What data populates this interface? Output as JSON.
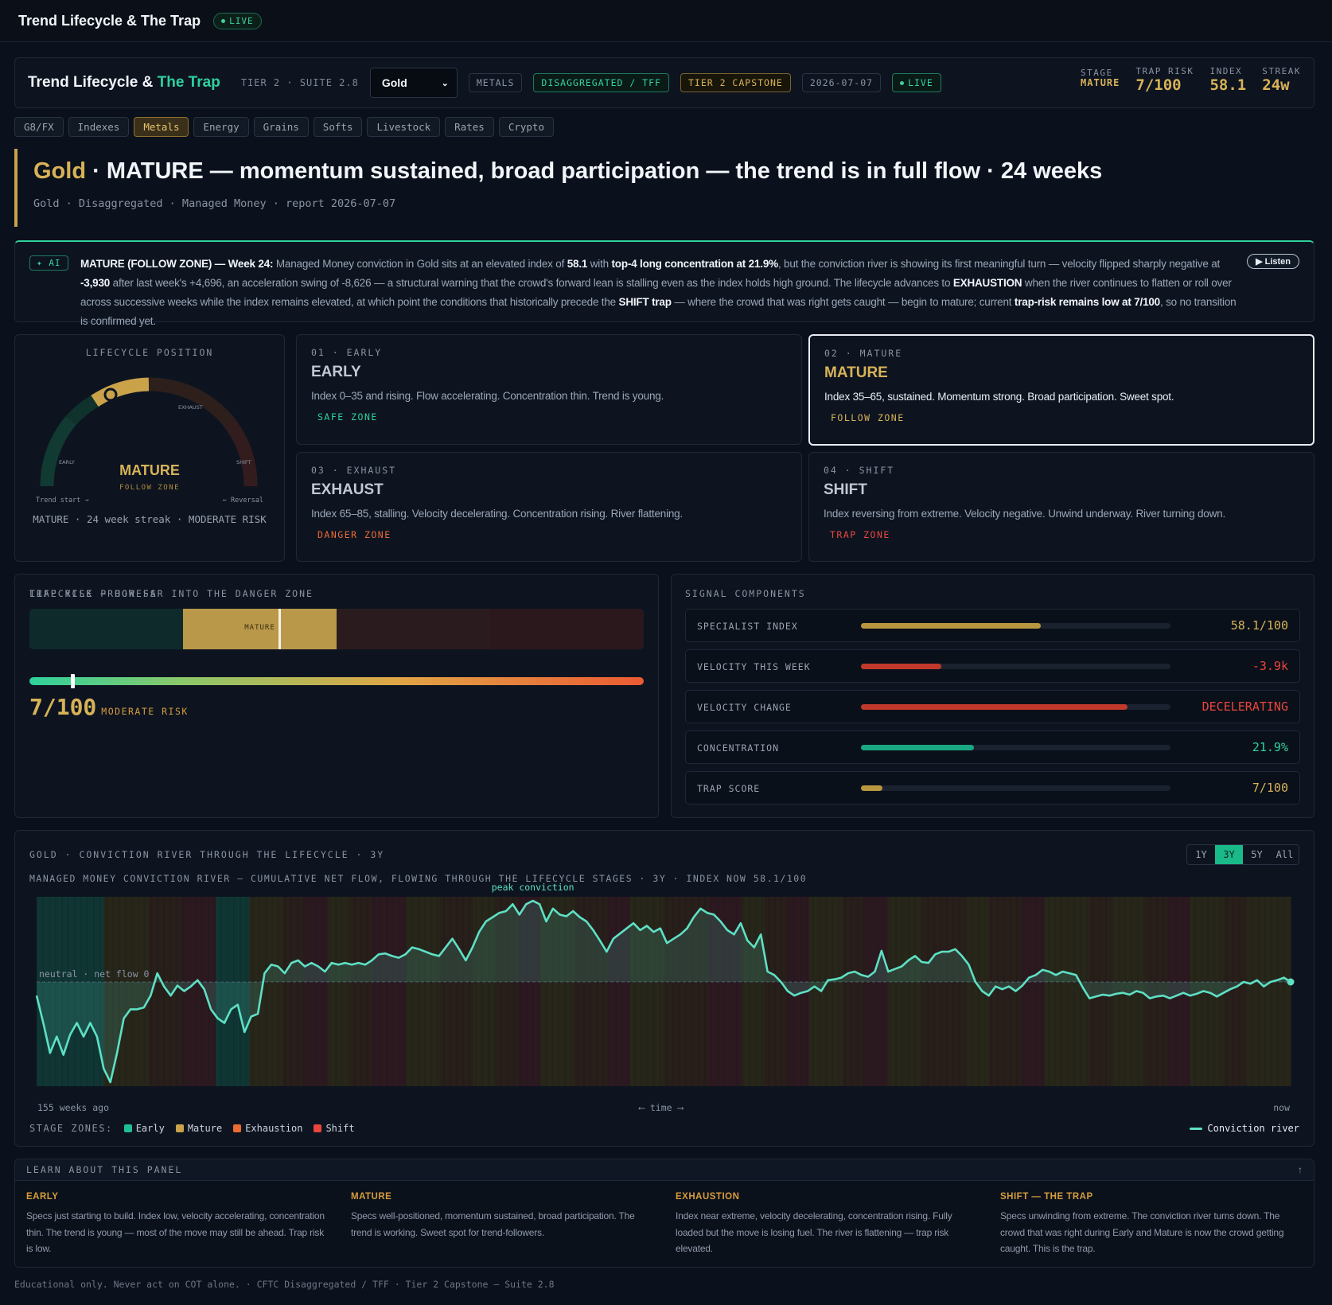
{
  "app": {
    "title": "Trend Lifecycle & The Trap",
    "live": "LIVE"
  },
  "header": {
    "brand_a": "Trend Lifecycle & ",
    "brand_b": "The Trap",
    "meta": "TIER 2 · SUITE 2.8",
    "asset_select": "Gold",
    "chips": [
      "METALS",
      "DISAGGREGATED / TFF",
      "TIER 2 CAPSTONE",
      "2026-07-07",
      "LIVE"
    ],
    "stats": [
      {
        "k": "STAGE",
        "v": "MATURE"
      },
      {
        "k": "TRAP RISK",
        "v": "7/100"
      },
      {
        "k": "INDEX",
        "v": "58.1"
      },
      {
        "k": "STREAK",
        "v": "24w"
      }
    ]
  },
  "tabs": [
    "G8/FX",
    "Indexes",
    "Metals",
    "Energy",
    "Grains",
    "Softs",
    "Livestock",
    "Rates",
    "Crypto"
  ],
  "active_tab": "Metals",
  "headline": {
    "asset": "Gold",
    "rest": " · MATURE — momentum sustained, broad participation — the trend is in full flow · 24 weeks",
    "sub": "Gold · Disaggregated · Managed Money · report 2026-07-07"
  },
  "ai": {
    "badge": "✦ AI",
    "listen": "▶ Listen",
    "p1": "MATURE (FOLLOW ZONE) — Week 24:",
    "p2": " Managed Money conviction in Gold sits at an elevated index of ",
    "p3": "58.1",
    "p4": " with ",
    "p5": "top-4 long concentration at 21.9%",
    "p6": ", but the conviction river is showing its first meaningful turn — velocity flipped sharply negative at ",
    "p7": "-3,930",
    "p8": " after last week's +4,696, an acceleration swing of -8,626 — a structural warning that the crowd's forward lean is stalling even as the index holds high ground. The lifecycle advances to ",
    "p9": "EXHAUSTION",
    "p10": " when the river continues to flatten or roll over across successive weeks while the index remains elevated, at which point the conditions that historically precede the ",
    "p11": "SHIFT trap",
    "p12": " — where the crowd that was right gets caught — begin to mature; current ",
    "p13": "trap-risk remains low at 7/100",
    "p14": ", so no transition is confirmed yet."
  },
  "gauge": {
    "label": "LIFECYCLE POSITION",
    "stage": "MATURE",
    "zone": "FOLLOW ZONE",
    "tick_early": "EARLY",
    "tick_exhaust": "EXHAUST",
    "tick_shift": "SHIFT",
    "end_left": "Trend start →",
    "end_right": "← Reversal",
    "foot": "MATURE · 24 week streak · MODERATE RISK"
  },
  "stages": [
    {
      "num": "01 · EARLY",
      "name": "EARLY",
      "desc": "Index 0–35 and rising. Flow accelerating. Concentration thin. Trend is young.",
      "zone": "SAFE ZONE",
      "color": "#2fd19c"
    },
    {
      "num": "02 · MATURE",
      "name": "MATURE",
      "desc": "Index 35–65, sustained. Momentum strong. Broad participation. Sweet spot.",
      "zone": "FOLLOW ZONE",
      "color": "#d7b257"
    },
    {
      "num": "03 · EXHAUST",
      "name": "EXHAUST",
      "desc": "Index 65–85, stalling. Velocity decelerating. Concentration rising. River flattening.",
      "zone": "DANGER ZONE",
      "color": "#ec6a33"
    },
    {
      "num": "04 · SHIFT",
      "name": "SHIFT",
      "desc": "Index reversing from extreme. Velocity negative. Unwind underway. River turning down.",
      "zone": "TRAP ZONE",
      "color": "#e8463c"
    }
  ],
  "progress": {
    "label": "LIFECYCLE PROGRESS",
    "bar_text": "MATURE",
    "position": 0.405,
    "trap_label": "TRAP RISK — HOW FAR INTO THE DANGER ZONE",
    "trap_value": "7/100",
    "trap_fraction": 0.07,
    "trap_text": "MODERATE RISK"
  },
  "signals": {
    "label": "SIGNAL COMPONENTS",
    "rows": [
      {
        "k": "SPECIALIST INDEX",
        "v": "58.1/100",
        "fill": 0.581,
        "color": "#b9973f",
        "vcolor": "#d7b257"
      },
      {
        "k": "VELOCITY THIS WEEK",
        "v": "-3.9k",
        "fill": 0.26,
        "color": "#c0392b",
        "vcolor": "#e8463c"
      },
      {
        "k": "VELOCITY CHANGE",
        "v": "DECELERATING",
        "fill": 0.86,
        "color": "#c0392b",
        "vcolor": "#e8463c"
      },
      {
        "k": "CONCENTRATION",
        "v": "21.9%",
        "fill": 0.365,
        "color": "#1aa882",
        "vcolor": "#2fd19c"
      },
      {
        "k": "TRAP SCORE",
        "v": "7/100",
        "fill": 0.07,
        "color": "#b9973f",
        "vcolor": "#d7b257"
      }
    ]
  },
  "river": {
    "label": "GOLD · CONVICTION RIVER THROUGH THE LIFECYCLE · 3Y",
    "sub": "MANAGED MONEY CONVICTION RIVER — CUMULATIVE NET FLOW, FLOWING THROUGH THE LIFECYCLE STAGES · 3Y · INDEX NOW 58.1/100",
    "ranges": [
      "1Y",
      "3Y",
      "5Y",
      "All"
    ],
    "active_range": "3Y",
    "peak_label": "peak conviction",
    "neutral_label": "neutral · net flow 0",
    "axis_left": "155 weeks ago",
    "axis_mid": "⟵ time ⟶",
    "axis_right": "now",
    "legend_key": "STAGE ZONES:",
    "zones": [
      {
        "name": "Early",
        "color": "#1fbf95"
      },
      {
        "name": "Mature",
        "color": "#c9a24a"
      },
      {
        "name": "Exhaustion",
        "color": "#ec6a33"
      },
      {
        "name": "Shift",
        "color": "#e8463c"
      }
    ],
    "legend_line": "Conviction river"
  },
  "chart_data": {
    "type": "line",
    "title": "MANAGED MONEY CONVICTION RIVER — CUMULATIVE NET FLOW, FLOWING THROUGH THE LIFECYCLE STAGES · 3Y · INDEX NOW 58.1/100",
    "xlabel": "⟵ time ⟶",
    "x_range": [
      "155 weeks ago",
      "now"
    ],
    "series": [
      {
        "name": "Conviction river",
        "values": [
          -0.15,
          -0.45,
          -0.78,
          -0.6,
          -0.8,
          -0.58,
          -0.45,
          -0.6,
          -0.45,
          -0.6,
          -0.95,
          -1.1,
          -0.78,
          -0.4,
          -0.3,
          -0.3,
          -0.28,
          -0.15,
          0.1,
          -0.05,
          -0.15,
          -0.04,
          -0.1,
          -0.05,
          0.02,
          -0.08,
          -0.3,
          -0.4,
          -0.45,
          -0.3,
          -0.25,
          -0.55,
          -0.38,
          -0.35,
          0.1,
          0.2,
          0.18,
          0.1,
          0.22,
          0.25,
          0.18,
          0.22,
          0.18,
          0.12,
          0.22,
          0.2,
          0.22,
          0.2,
          0.22,
          0.2,
          0.25,
          0.32,
          0.33,
          0.3,
          0.28,
          0.32,
          0.4,
          0.38,
          0.35,
          0.32,
          0.3,
          0.4,
          0.5,
          0.38,
          0.25,
          0.4,
          0.58,
          0.7,
          0.75,
          0.8,
          0.82,
          0.9,
          0.78,
          0.9,
          0.94,
          0.9,
          0.7,
          0.85,
          0.78,
          0.76,
          0.82,
          0.75,
          0.7,
          0.6,
          0.48,
          0.35,
          0.5,
          0.56,
          0.62,
          0.68,
          0.6,
          0.65,
          0.58,
          0.62,
          0.45,
          0.5,
          0.55,
          0.62,
          0.75,
          0.85,
          0.8,
          0.78,
          0.7,
          0.6,
          0.55,
          0.68,
          0.48,
          0.4,
          0.55,
          0.12,
          0.08,
          0.0,
          -0.1,
          -0.15,
          -0.12,
          -0.1,
          -0.05,
          -0.1,
          0.02,
          0.03,
          0.05,
          0.1,
          0.12,
          0.08,
          0.06,
          0.12,
          0.36,
          0.12,
          0.15,
          0.18,
          0.25,
          0.3,
          0.23,
          0.22,
          0.32,
          0.35,
          0.35,
          0.38,
          0.3,
          0.2,
          0.0,
          -0.1,
          -0.15,
          -0.05,
          -0.08,
          -0.05,
          -0.1,
          -0.04,
          0.05,
          0.08,
          0.14,
          0.12,
          0.08,
          0.12,
          0.1,
          0.08,
          -0.06,
          -0.18,
          -0.16,
          -0.14,
          -0.15,
          -0.13,
          -0.12,
          -0.14,
          -0.1,
          -0.12,
          -0.18,
          -0.16,
          -0.15,
          -0.18,
          -0.15,
          -0.12,
          -0.15,
          -0.13,
          -0.1,
          -0.12,
          -0.16,
          -0.12,
          -0.08,
          -0.05,
          0.0,
          -0.02,
          0.02,
          -0.05,
          0.0,
          0.02,
          0.05,
          0.0
        ]
      }
    ],
    "zones_band": "EEEEEEMMMMXXXSSSEEEMMMXXSSMMXXSSSMMMXXXMMXXSSMMMXXXSSMMMXXXXSSSMMXXSSMMMXXSSMMMXXXXMMXXXSSMMMMXXMMMXXSSMMMXXMMMM",
    "ylabel_zero": "neutral · net flow 0",
    "annotation": "peak conviction",
    "grid": false
  },
  "learn": {
    "head": "LEARN ABOUT THIS PANEL",
    "toggle": "↑",
    "cols": [
      {
        "h": "EARLY",
        "p": "Specs just starting to build. Index low, velocity accelerating, concentration thin. The trend is young — most of the move may still be ahead. Trap risk is low."
      },
      {
        "h": "MATURE",
        "p": "Specs well-positioned, momentum sustained, broad participation. The trend is working. Sweet spot for trend-followers."
      },
      {
        "h": "EXHAUSTION",
        "p": "Index near extreme, velocity decelerating, concentration rising. Fully loaded but the move is losing fuel. The river is flattening — trap risk elevated."
      },
      {
        "h": "SHIFT — THE TRAP",
        "p": "Specs unwinding from extreme. The conviction river turns down. The crowd that was right during Early and Mature is now the crowd getting caught. This is the trap."
      }
    ]
  },
  "footer": "Educational only. Never act on COT alone. · CFTC Disaggregated / TFF · Tier 2 Capstone — Suite 2.8"
}
